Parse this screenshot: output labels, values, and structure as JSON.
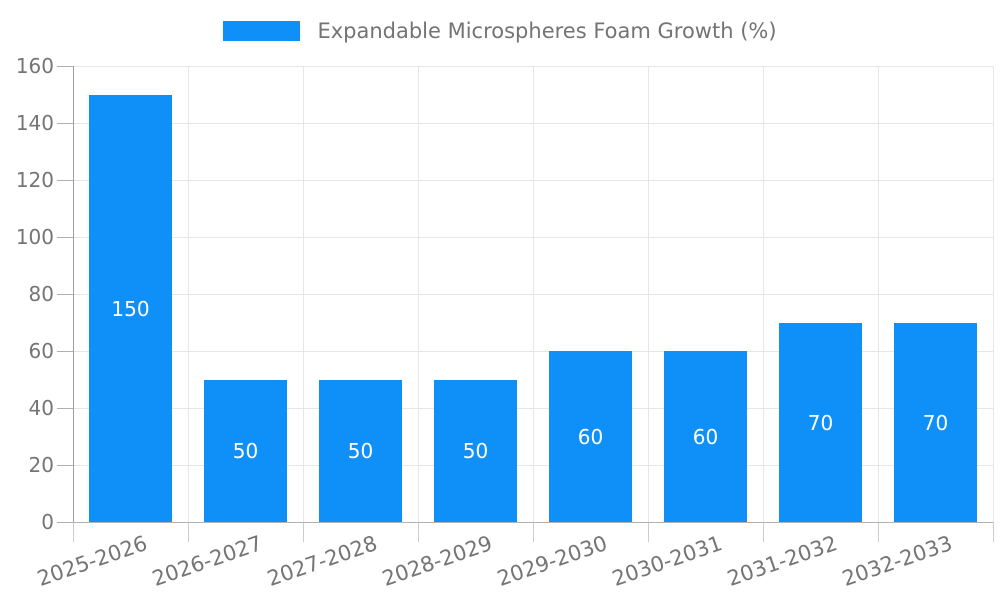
{
  "legend": {
    "label": "Expandable Microspheres Foam Growth (%)"
  },
  "chart_data": {
    "type": "bar",
    "title": "Expandable Microspheres Foam Growth (%)",
    "categories": [
      "2025-2026",
      "2026-2027",
      "2027-2028",
      "2028-2029",
      "2029-2030",
      "2030-2031",
      "2031-2032",
      "2032-2033"
    ],
    "values": [
      150,
      50,
      50,
      50,
      60,
      60,
      70,
      70
    ],
    "bar_labels": [
      "150",
      "50",
      "50",
      "50",
      "60",
      "60",
      "70",
      "70"
    ],
    "xlabel": "",
    "ylabel": "",
    "ylim": [
      0,
      160
    ],
    "yticks": [
      0,
      20,
      40,
      60,
      80,
      100,
      120,
      140,
      160
    ],
    "grid": "on",
    "legend_position": "top-center",
    "x_label_rotation_deg": -19,
    "colors": {
      "bar": "#0e90f8",
      "bar_label_text": "#ffffff",
      "axis_text": "#757575",
      "legend_text": "#747474",
      "grid_line": "#e6e6e6",
      "axis_line": "#a6a6a6"
    }
  }
}
